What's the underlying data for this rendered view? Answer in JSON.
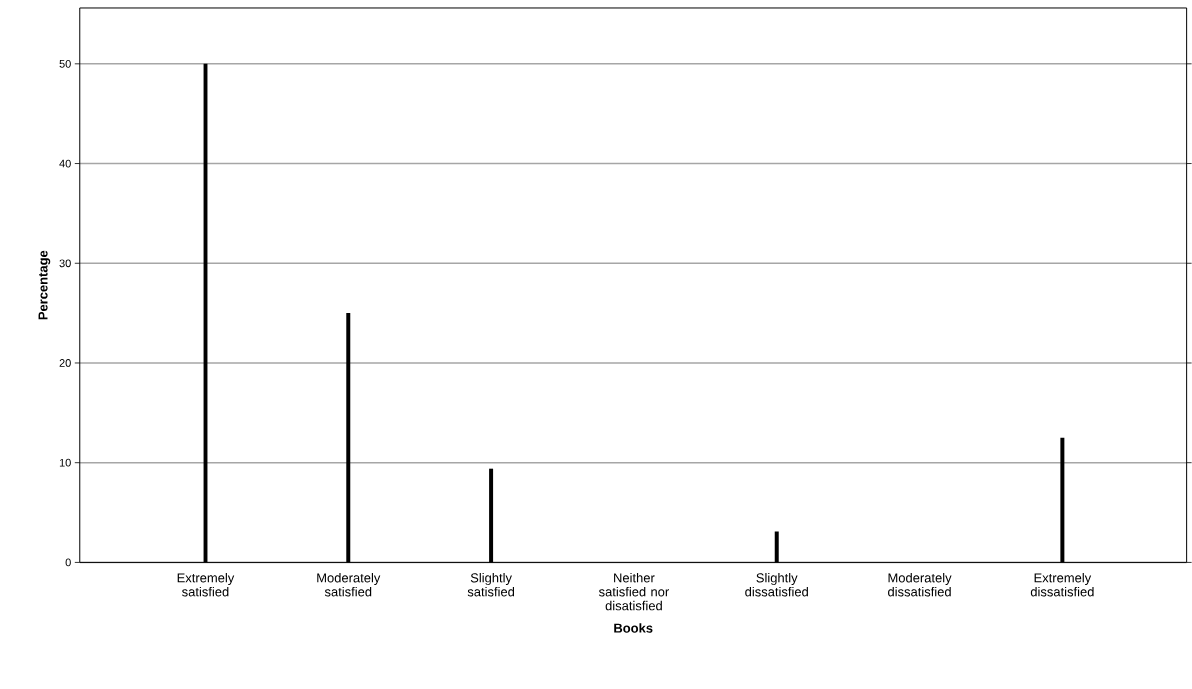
{
  "chart_data": {
    "type": "bar",
    "xlabel": "Books",
    "ylabel": "Percentage",
    "categories": [
      "Extremely satisfied",
      "Moderately satisfied",
      "Slightly satisfied",
      "Neither satisfied nor disatisfied",
      "Slightly dissatisfied",
      "Moderately dissatisfied",
      "Extremely dissatisfied"
    ],
    "values": [
      50,
      25,
      9.4,
      0,
      3.1,
      0,
      12.5
    ],
    "color": "#000000",
    "ylim": [
      0,
      55.6
    ],
    "yticks": [
      0,
      10,
      20,
      30,
      40,
      50
    ],
    "grid": "y"
  }
}
